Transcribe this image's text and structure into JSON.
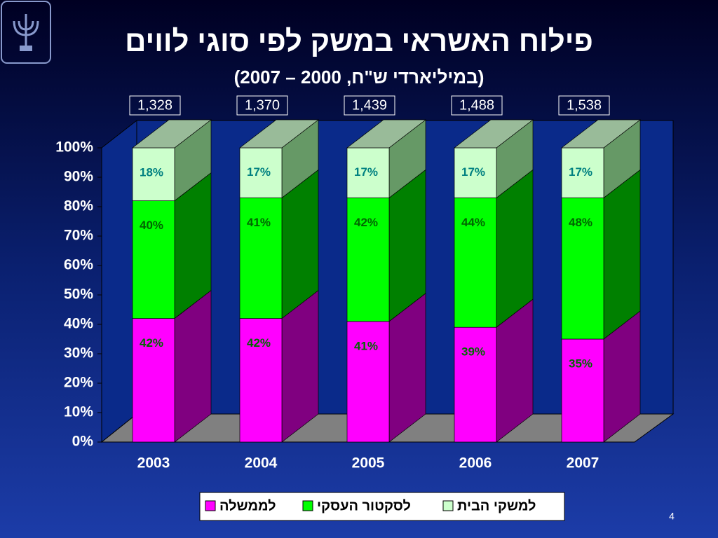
{
  "chart_data": {
    "type": "bar3d_stacked",
    "title": "פילוח האשראי במשק לפי סוגי לווים",
    "subtitle": "(במיליארדי ש\"ח, 2000 – 2007)",
    "categories": [
      "2003",
      "2004",
      "2005",
      "2006",
      "2007"
    ],
    "annotations": [
      "1,328",
      "1,370",
      "1,439",
      "1,488",
      "1,538"
    ],
    "series": [
      {
        "name": "לממשלה",
        "color": "#ff00ff",
        "side_color": "#800080",
        "label_color": "#006600",
        "values": [
          42,
          42,
          41,
          39,
          35
        ],
        "value_labels": [
          "42%",
          "42%",
          "41%",
          "39%",
          "35%"
        ]
      },
      {
        "name": "לסקטור העסקי",
        "color": "#00ff00",
        "side_color": "#008000",
        "label_color": "#006600",
        "values": [
          40,
          41,
          42,
          44,
          48
        ],
        "value_labels": [
          "40%",
          "41%",
          "42%",
          "44%",
          "48%"
        ]
      },
      {
        "name": "למשקי הבית",
        "color": "#ccffcc",
        "side_color": "#669966",
        "top_color": "#99bb99",
        "label_color": "#008080",
        "values": [
          18,
          17,
          17,
          17,
          17
        ],
        "value_labels": [
          "18%",
          "17%",
          "17%",
          "17%",
          "17%"
        ]
      }
    ],
    "ylim": [
      0,
      100
    ],
    "yticks": [
      {
        "value": 0,
        "label": "0%"
      },
      {
        "value": 10,
        "label": "10%"
      },
      {
        "value": 20,
        "label": "20%"
      },
      {
        "value": 30,
        "label": "30%"
      },
      {
        "value": 40,
        "label": "40%"
      },
      {
        "value": 50,
        "label": "50%"
      },
      {
        "value": 60,
        "label": "60%"
      },
      {
        "value": 70,
        "label": "70%"
      },
      {
        "value": 80,
        "label": "80%"
      },
      {
        "value": 90,
        "label": "90%"
      },
      {
        "value": 100,
        "label": "100%"
      }
    ],
    "slide_number": "4"
  }
}
